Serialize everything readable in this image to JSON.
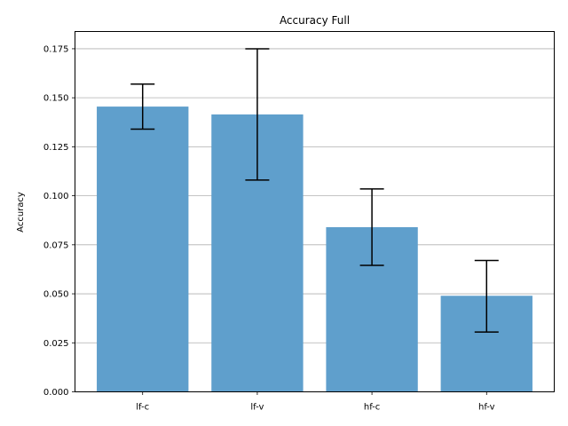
{
  "chart_data": {
    "type": "bar",
    "title": "Accuracy Full",
    "xlabel": "",
    "ylabel": "Accuracy",
    "categories": [
      "lf-c",
      "lf-v",
      "hf-c",
      "hf-v"
    ],
    "values": [
      0.1455,
      0.1415,
      0.084,
      0.049
    ],
    "error_low": [
      0.134,
      0.108,
      0.0645,
      0.0305
    ],
    "error_high": [
      0.157,
      0.175,
      0.1035,
      0.067
    ],
    "ylim": [
      0,
      0.1838
    ],
    "yticks": [
      0.0,
      0.025,
      0.05,
      0.075,
      0.1,
      0.125,
      0.15,
      0.175
    ],
    "ytick_labels": [
      "0.000",
      "0.025",
      "0.050",
      "0.075",
      "0.100",
      "0.125",
      "0.150",
      "0.175"
    ],
    "grid": "horizontal",
    "bar_color": "#5f9fcc",
    "error_color": "#000000",
    "grid_color": "#b0b0b0"
  }
}
